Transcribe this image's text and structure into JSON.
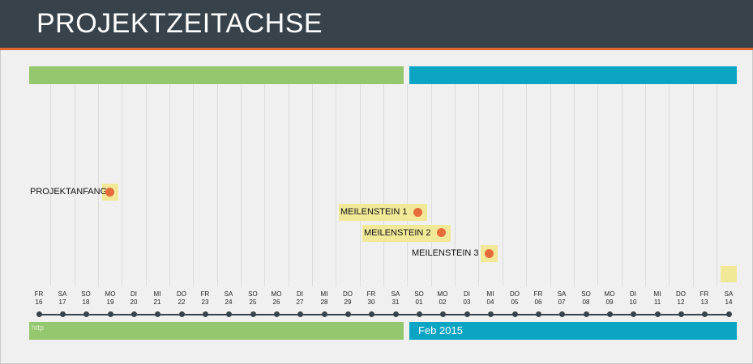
{
  "header": {
    "title": "PROJEKTZEITACHSE"
  },
  "months": {
    "left_label": "http",
    "right_label": "Feb 2015"
  },
  "days": [
    {
      "wd": "FR",
      "d": "16"
    },
    {
      "wd": "SA",
      "d": "17"
    },
    {
      "wd": "SO",
      "d": "18"
    },
    {
      "wd": "MO",
      "d": "19"
    },
    {
      "wd": "DI",
      "d": "20"
    },
    {
      "wd": "MI",
      "d": "21"
    },
    {
      "wd": "DO",
      "d": "22"
    },
    {
      "wd": "FR",
      "d": "23"
    },
    {
      "wd": "SA",
      "d": "24"
    },
    {
      "wd": "SO",
      "d": "25"
    },
    {
      "wd": "MO",
      "d": "26"
    },
    {
      "wd": "DI",
      "d": "27"
    },
    {
      "wd": "MI",
      "d": "28"
    },
    {
      "wd": "DO",
      "d": "29"
    },
    {
      "wd": "FR",
      "d": "30"
    },
    {
      "wd": "SA",
      "d": "31"
    },
    {
      "wd": "SO",
      "d": "01"
    },
    {
      "wd": "MO",
      "d": "02"
    },
    {
      "wd": "DI",
      "d": "03"
    },
    {
      "wd": "MI",
      "d": "04"
    },
    {
      "wd": "DO",
      "d": "05"
    },
    {
      "wd": "FR",
      "d": "06"
    },
    {
      "wd": "SA",
      "d": "07"
    },
    {
      "wd": "SO",
      "d": "08"
    },
    {
      "wd": "MO",
      "d": "09"
    },
    {
      "wd": "DI",
      "d": "10"
    },
    {
      "wd": "MI",
      "d": "11"
    },
    {
      "wd": "DO",
      "d": "12"
    },
    {
      "wd": "FR",
      "d": "13"
    },
    {
      "wd": "SA",
      "d": "14"
    }
  ],
  "milestones": [
    {
      "label": "PROJEKTANFANG"
    },
    {
      "label": "MEILENSTEIN 1"
    },
    {
      "label": "MEILENSTEIN 2"
    },
    {
      "label": "MEILENSTEIN 3"
    }
  ],
  "colors": {
    "header_bg": "#37424a",
    "accent": "#e0642d",
    "green": "#95c86e",
    "blue": "#0ba5c3",
    "milestone_box": "#f1e898",
    "milestone_dot": "#e86c3b"
  }
}
